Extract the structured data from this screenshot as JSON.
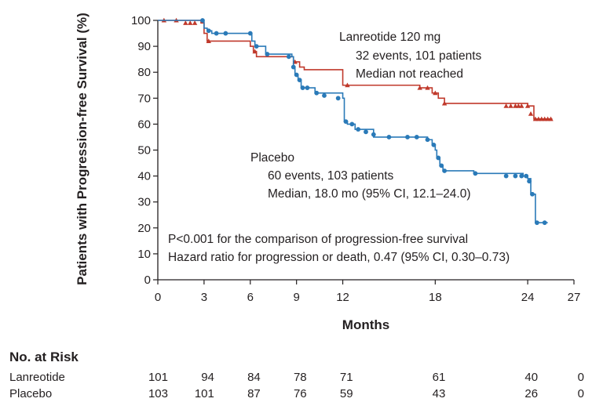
{
  "chart_data": {
    "type": "line",
    "xlabel": "Months",
    "ylabel": "Patients with Progression-free Survival (%)",
    "xlim": [
      0,
      27
    ],
    "ylim": [
      0,
      100
    ],
    "x_ticks": [
      0,
      3,
      6,
      9,
      12,
      18,
      24,
      27
    ],
    "y_ticks": [
      0,
      10,
      20,
      30,
      40,
      50,
      60,
      70,
      80,
      90,
      100
    ],
    "grid": false,
    "legend": "none",
    "series": [
      {
        "name": "Lanreotide 120 mg",
        "color": "#c0392b",
        "marker": "triangle",
        "x": [
          0,
          2.8,
          3.0,
          3.2,
          5.8,
          6.0,
          6.2,
          6.4,
          8.6,
          8.8,
          9.2,
          9.5,
          12.0,
          12.2,
          17.0,
          17.8,
          18.2,
          18.6,
          24.0,
          24.4,
          25.6
        ],
        "y": [
          100,
          99,
          95,
          92,
          92,
          90,
          88,
          86,
          86,
          84,
          82,
          81,
          75,
          75,
          74,
          72,
          70,
          68,
          67,
          62,
          62
        ],
        "censor_x": [
          0.4,
          1.2,
          1.8,
          2.1,
          2.4,
          3.3,
          6.3,
          8.9,
          12.3,
          17.0,
          17.5,
          18.0,
          18.6,
          22.6,
          22.9,
          23.2,
          23.4,
          23.6,
          24.0,
          24.2,
          24.5,
          24.7,
          24.9,
          25.1,
          25.3,
          25.5
        ],
        "censor_y": [
          100,
          100,
          99,
          99,
          99,
          92,
          88,
          84,
          75,
          74,
          74,
          72,
          68,
          67,
          67,
          67,
          67,
          67,
          67,
          64,
          62,
          62,
          62,
          62,
          62,
          62
        ],
        "label": "Lanreotide 120 mg",
        "events_text": "32 events, 101 patients",
        "median_text": "Median not reached"
      },
      {
        "name": "Placebo",
        "color": "#2a7ab8",
        "marker": "circle",
        "x": [
          0,
          2.8,
          3.0,
          3.2,
          3.5,
          5.9,
          6.1,
          6.3,
          7.0,
          8.7,
          8.8,
          8.9,
          9.1,
          9.3,
          10.2,
          12.0,
          12.1,
          12.3,
          12.8,
          14.0,
          17.5,
          17.8,
          18.0,
          18.1,
          18.3,
          18.5,
          20.5,
          23.7,
          24.0,
          24.2,
          24.5,
          25.3
        ],
        "y": [
          100,
          100,
          97,
          96,
          95,
          95,
          92,
          90,
          87,
          86,
          82,
          79,
          77,
          74,
          72,
          70,
          61,
          60,
          58,
          55,
          54,
          52,
          50,
          47,
          44,
          42,
          41,
          40,
          39,
          33,
          22,
          22
        ],
        "censor_x": [
          2.9,
          3.3,
          3.8,
          4.4,
          6.0,
          6.4,
          7.1,
          8.5,
          8.8,
          9.0,
          9.2,
          9.4,
          9.7,
          10.3,
          10.8,
          11.7,
          12.2,
          12.6,
          13.0,
          13.5,
          14.0,
          15.0,
          16.2,
          16.8,
          17.5,
          17.9,
          18.2,
          18.4,
          18.6,
          20.6,
          22.6,
          23.2,
          23.6,
          23.9,
          24.1,
          24.3,
          24.6,
          25.1
        ],
        "censor_y": [
          100,
          96,
          95,
          95,
          95,
          90,
          87,
          86,
          82,
          79,
          77,
          74,
          74,
          72,
          71,
          70,
          61,
          60,
          58,
          57,
          56,
          55,
          55,
          55,
          54,
          52,
          47,
          44,
          42,
          41,
          40,
          40,
          40,
          40,
          38,
          33,
          22,
          22
        ]
      }
    ],
    "placebo_label": "Placebo",
    "placebo_events": "60 events, 103 patients",
    "placebo_median": "Median, 18.0 mo (95% CI, 12.1–24.0)",
    "p_value_text": "P<0.001 for the comparison of progression-free survival",
    "hazard_text": "Hazard ratio for progression or death, 0.47 (95% CI, 0.30–0.73)",
    "risk_table": {
      "title": "No. at Risk",
      "timepoints": [
        0,
        3,
        6,
        9,
        12,
        18,
        24,
        27
      ],
      "rows": [
        {
          "label": "Lanreotide",
          "values": [
            "101",
            "94",
            "84",
            "78",
            "71",
            "61",
            "40",
            "0"
          ]
        },
        {
          "label": "Placebo",
          "values": [
            "103",
            "101",
            "87",
            "76",
            "59",
            "43",
            "26",
            "0"
          ]
        }
      ]
    }
  }
}
